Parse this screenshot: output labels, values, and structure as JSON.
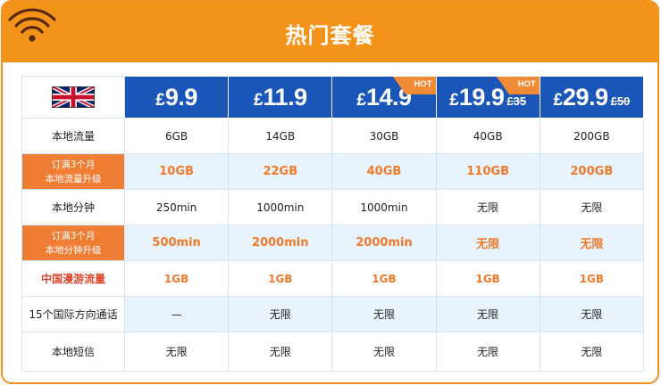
{
  "header": {
    "title": "热门套餐",
    "bg_color": "#f4931a"
  },
  "plans": [
    {
      "currency": "£",
      "price": "9.9",
      "old_price": "",
      "hot": false
    },
    {
      "currency": "£",
      "price": "11.9",
      "old_price": "",
      "hot": false
    },
    {
      "currency": "£",
      "price": "14.9",
      "old_price": "",
      "hot": true
    },
    {
      "currency": "£",
      "price": "19.9",
      "old_price": "35",
      "hot": true
    },
    {
      "currency": "£",
      "price": "29.9",
      "old_price": "50",
      "hot": false
    }
  ],
  "hot_label": "HOT",
  "rows": [
    {
      "label": "本地流量",
      "values": [
        "6GB",
        "14GB",
        "30GB",
        "40GB",
        "200GB"
      ]
    },
    {
      "label_line1": "订满3个月",
      "label_line2": "本地流量升级",
      "values": [
        "10GB",
        "22GB",
        "40GB",
        "110GB",
        "200GB"
      ]
    },
    {
      "label": "本地分钟",
      "values": [
        "250min",
        "1000min",
        "1000min",
        "无限",
        "无限"
      ]
    },
    {
      "label_line1": "订满3个月",
      "label_line2": "本地分钟升级",
      "values": [
        "500min",
        "2000min",
        "2000min",
        "无限",
        "无限"
      ]
    },
    {
      "label": "中国漫游流量",
      "values": [
        "1GB",
        "1GB",
        "1GB",
        "1GB",
        "1GB"
      ]
    },
    {
      "label": "15个国际方向通话",
      "values": [
        "—",
        "无限",
        "无限",
        "无限",
        "无限"
      ]
    },
    {
      "label": "本地短信",
      "values": [
        "无限",
        "无限",
        "无限",
        "无限",
        "无限"
      ]
    }
  ],
  "icons": {
    "wifi": "wifi-icon",
    "flag": "uk-flag-icon"
  },
  "colors": {
    "accent_orange": "#ef7d34",
    "price_blue": "#1a56b8",
    "alt_row": "#e9f3fc",
    "highlight_red": "#e2452b"
  }
}
